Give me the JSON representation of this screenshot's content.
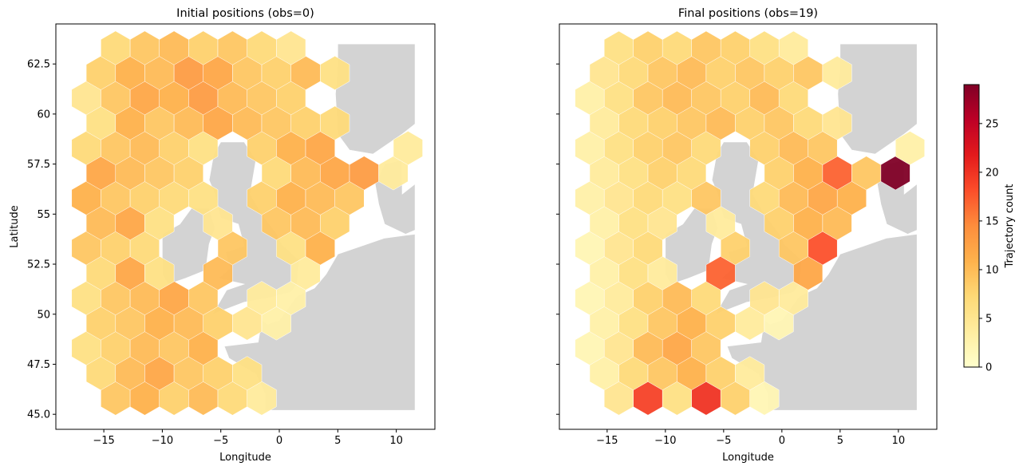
{
  "chart_data": [
    {
      "type": "hexbin",
      "title": "Initial positions (obs=0)",
      "xlabel": "Longitude",
      "ylabel": "Latitude",
      "xlim": [
        -19.1,
        13.3
      ],
      "ylim": [
        44.25,
        64.5
      ],
      "xticks": [
        {
          "value": -15,
          "label": "−15"
        },
        {
          "value": -10,
          "label": "−10"
        },
        {
          "value": -5,
          "label": "−5"
        },
        0,
        5,
        10
      ],
      "yticks": [
        {
          "value": 45,
          "label": "45.0"
        },
        47.5,
        50,
        52.5,
        55,
        57.5,
        60,
        62.5
      ],
      "ytick_labels": true,
      "grid_lon": [
        -16.5,
        -14,
        -11.5,
        -9,
        -6.5,
        -4,
        -1.5,
        1,
        3.5,
        6,
        8.5,
        11
      ],
      "grid_lat": [
        45.8,
        47.05,
        48.3,
        49.55,
        50.8,
        52.05,
        53.3,
        54.55,
        55.8,
        57.05,
        58.3,
        59.55,
        60.8,
        62.05,
        63.3
      ],
      "counts": [
        [
          null,
          9,
          11,
          8,
          10,
          7,
          4,
          null,
          null,
          null,
          null,
          null
        ],
        [
          7,
          10,
          12,
          9,
          8,
          6,
          null,
          null,
          null,
          null,
          null,
          null
        ],
        [
          6,
          8,
          10,
          9,
          11,
          null,
          null,
          null,
          null,
          null,
          null,
          null
        ],
        [
          8,
          9,
          11,
          10,
          8,
          5,
          3,
          null,
          null,
          null,
          null,
          null
        ],
        [
          6,
          9,
          10,
          12,
          9,
          null,
          4,
          3,
          null,
          null,
          null,
          null
        ],
        [
          7,
          12,
          6,
          null,
          10,
          null,
          null,
          4,
          null,
          null,
          null,
          null
        ],
        [
          9,
          8,
          7,
          null,
          null,
          9,
          null,
          6,
          11,
          null,
          null,
          null
        ],
        [
          10,
          12,
          6,
          null,
          5,
          null,
          9,
          10,
          8,
          null,
          null,
          null
        ],
        [
          11,
          9,
          8,
          7,
          6,
          null,
          8,
          11,
          10,
          9,
          null,
          null
        ],
        [
          12,
          10,
          9,
          8,
          null,
          null,
          7,
          10,
          12,
          13,
          4,
          null
        ],
        [
          7,
          9,
          10,
          8,
          6,
          null,
          8,
          11,
          12,
          null,
          null,
          4
        ],
        [
          6,
          11,
          9,
          10,
          12,
          10,
          9,
          8,
          7,
          null,
          null,
          null
        ],
        [
          5,
          9,
          12,
          11,
          13,
          10,
          9,
          8,
          null,
          null,
          null,
          null
        ],
        [
          8,
          11,
          10,
          13,
          12,
          9,
          8,
          10,
          6,
          null,
          null,
          null
        ],
        [
          null,
          7,
          9,
          10,
          8,
          9,
          7,
          5,
          null,
          null,
          null,
          null
        ]
      ]
    },
    {
      "type": "hexbin",
      "title": "Final positions (obs=19)",
      "xlabel": "Longitude",
      "xlim": [
        -19.1,
        13.3
      ],
      "ylim": [
        44.25,
        64.5
      ],
      "xticks": [
        {
          "value": -15,
          "label": "−15"
        },
        {
          "value": -10,
          "label": "−10"
        },
        {
          "value": -5,
          "label": "−5"
        },
        0,
        5,
        10
      ],
      "yticks": [
        45,
        47.5,
        50,
        52.5,
        55,
        57.5,
        60,
        62.5
      ],
      "ytick_labels": false,
      "grid_lon": [
        -16.5,
        -14,
        -11.5,
        -9,
        -6.5,
        -4,
        -1.5,
        1,
        3.5,
        6,
        8.5,
        11
      ],
      "grid_lat": [
        45.8,
        47.05,
        48.3,
        49.55,
        50.8,
        52.05,
        53.3,
        54.55,
        55.8,
        57.05,
        58.3,
        59.55,
        60.8,
        62.05,
        63.3
      ],
      "counts": [
        [
          null,
          5,
          19,
          6,
          20,
          8,
          2,
          null,
          null,
          null,
          null,
          null
        ],
        [
          3,
          7,
          9,
          11,
          8,
          4,
          null,
          null,
          null,
          null,
          null,
          null
        ],
        [
          2,
          5,
          10,
          12,
          9,
          null,
          null,
          null,
          null,
          null,
          null,
          null
        ],
        [
          3,
          6,
          9,
          11,
          8,
          4,
          2,
          null,
          null,
          null,
          null,
          null
        ],
        [
          2,
          4,
          8,
          10,
          7,
          null,
          5,
          4,
          null,
          null,
          null,
          null
        ],
        [
          3,
          6,
          4,
          null,
          17,
          null,
          null,
          12,
          null,
          null,
          null,
          null
        ],
        [
          2,
          5,
          7,
          null,
          null,
          8,
          null,
          9,
          18,
          null,
          null,
          null
        ],
        [
          3,
          6,
          5,
          null,
          4,
          null,
          8,
          11,
          10,
          null,
          null,
          null
        ],
        [
          3,
          5,
          7,
          6,
          9,
          null,
          7,
          10,
          12,
          11,
          null,
          null
        ],
        [
          4,
          6,
          8,
          7,
          null,
          null,
          8,
          11,
          17,
          9,
          29,
          null
        ],
        [
          3,
          6,
          8,
          9,
          7,
          null,
          8,
          10,
          9,
          null,
          null,
          3
        ],
        [
          4,
          7,
          8,
          9,
          10,
          8,
          9,
          7,
          5,
          null,
          null,
          null
        ],
        [
          3,
          6,
          9,
          10,
          9,
          8,
          10,
          7,
          null,
          null,
          null,
          null
        ],
        [
          5,
          7,
          9,
          10,
          8,
          9,
          8,
          9,
          4,
          null,
          null,
          null
        ],
        [
          null,
          6,
          8,
          7,
          9,
          8,
          6,
          4,
          null,
          null,
          null,
          null
        ]
      ]
    }
  ],
  "colorbar": {
    "label": "Trajectory count",
    "lim": [
      0,
      29
    ],
    "ticks": [
      0,
      5,
      10,
      15,
      20,
      25
    ],
    "colors": [
      "#ffffcc",
      "#ffeda0",
      "#fed976",
      "#feb24c",
      "#fd8d3c",
      "#fc4e2a",
      "#e31a1c",
      "#bd0026",
      "#800026"
    ]
  }
}
